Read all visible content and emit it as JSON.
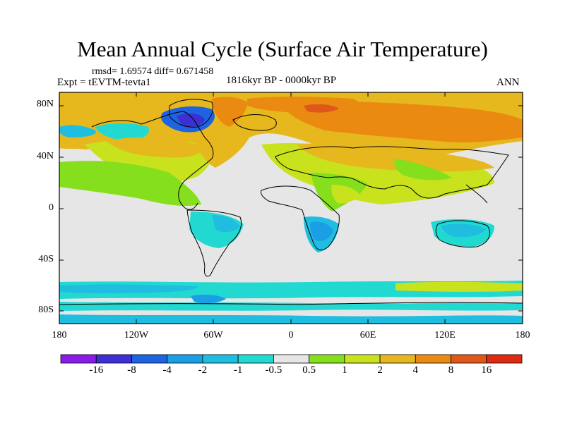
{
  "title": "Mean Annual Cycle (Surface Air Temperature)",
  "stats": "rmsd= 1.69574 diff= 0.671458",
  "experiment": "Expt = tEVTM-tevta1",
  "period": "1816kyr BP - 0000kyr BP",
  "season": "ANN",
  "lat_labels": [
    "80N",
    "40N",
    "0",
    "40S",
    "80S"
  ],
  "lon_labels": [
    "180",
    "120W",
    "60W",
    "0",
    "60E",
    "120E",
    "180"
  ],
  "colorbar": {
    "labels": [
      "-16",
      "-8",
      "-4",
      "-2",
      "-1",
      "-0.5",
      "0.5",
      "1",
      "2",
      "4",
      "8",
      "16"
    ],
    "colors": [
      "#8a1ce8",
      "#3d2fd4",
      "#1e63e0",
      "#1a9fe6",
      "#1fbde0",
      "#22d9d2",
      "#e6e6e6",
      "#86df1c",
      "#c8e21e",
      "#e6b81e",
      "#ea8a10",
      "#e0571a",
      "#df2a12"
    ]
  }
}
